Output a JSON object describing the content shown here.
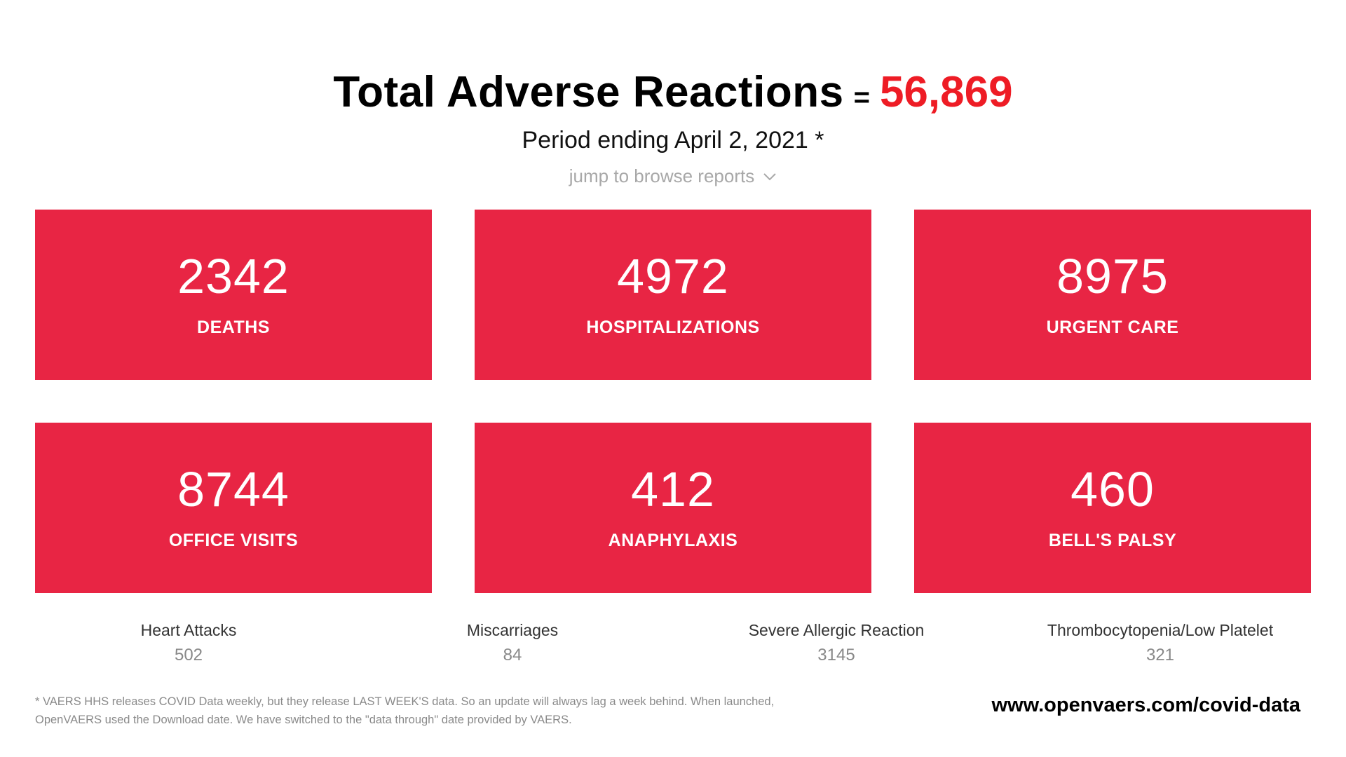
{
  "header": {
    "title": "Total Adverse Reactions",
    "equals": "=",
    "total": "56,869",
    "subtitle": "Period ending April 2, 2021 *",
    "jump_label": "jump to browse reports"
  },
  "cards": [
    {
      "value": "2342",
      "label": "DEATHS"
    },
    {
      "value": "4972",
      "label": "HOSPITALIZATIONS"
    },
    {
      "value": "8975",
      "label": "URGENT CARE"
    },
    {
      "value": "8744",
      "label": "OFFICE VISITS"
    },
    {
      "value": "412",
      "label": "ANAPHYLAXIS"
    },
    {
      "value": "460",
      "label": "BELL'S PALSY"
    }
  ],
  "stats": [
    {
      "label": "Heart Attacks",
      "value": "502"
    },
    {
      "label": "Miscarriages",
      "value": "84"
    },
    {
      "label": "Severe Allergic Reaction",
      "value": "3145"
    },
    {
      "label": "Thrombocytopenia/Low Platelet",
      "value": "321"
    }
  ],
  "footer": {
    "note": "* VAERS HHS releases COVID Data weekly, but they release LAST WEEK'S data. So an update will always lag a week behind. When launched, OpenVAERS used the Download date. We have switched to the \"data through\" date provided by VAERS.",
    "url": "www.openvaers.com/covid-data"
  },
  "colors": {
    "card_bg": "#e82544",
    "total_red": "#ee1c25",
    "jump_gray": "#a8a8a8"
  },
  "icons": {
    "jump": "chevron-down-icon"
  }
}
